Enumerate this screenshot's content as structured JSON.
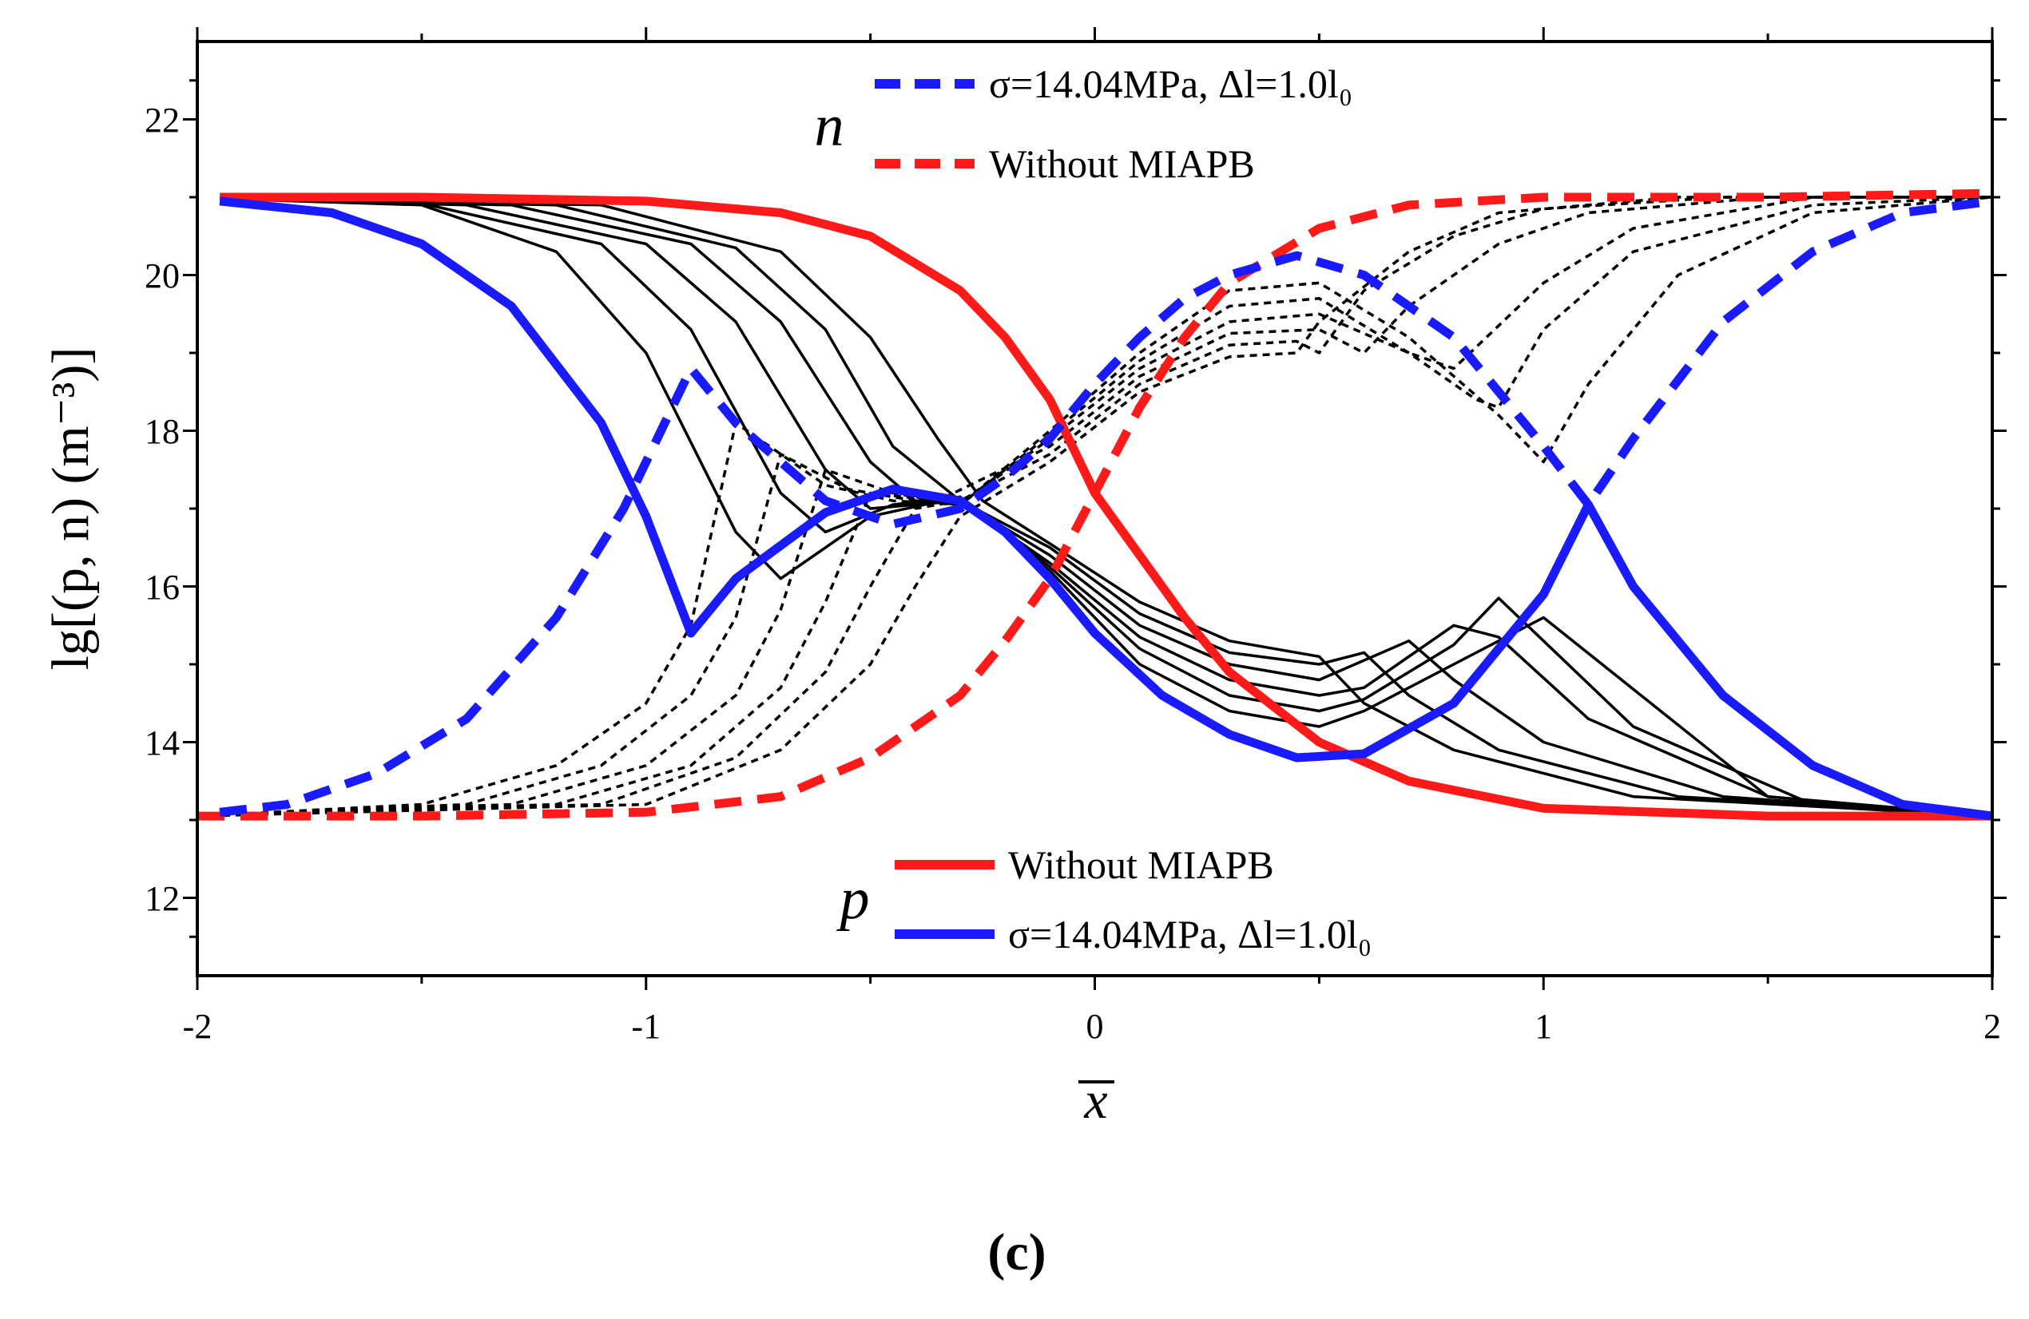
{
  "chart_data": {
    "type": "line",
    "panel_label": "(c)",
    "xlabel": "x",
    "ylabel": "lg[(p, n) (m⁻³)]",
    "xlim": [
      -2,
      2
    ],
    "ylim": [
      11,
      23
    ],
    "x_ticks": [
      -2,
      -1,
      0,
      1,
      2
    ],
    "x_tick_labels": [
      "-2",
      "-1",
      "0",
      "1",
      "2"
    ],
    "y_ticks": [
      12,
      14,
      16,
      18,
      20,
      22
    ],
    "y_tick_labels": [
      "12",
      "14",
      "16",
      "18",
      "20",
      "22"
    ],
    "grid": false,
    "legend_n": {
      "symbol": "n",
      "entries": [
        {
          "label": "σ=14.04MPa, Δl=1.0l₀",
          "color": "#1a1aff",
          "style": "dashed"
        },
        {
          "label": "Without MIAPB",
          "color": "#ff1a1a",
          "style": "dashed"
        }
      ]
    },
    "legend_p": {
      "symbol": "p",
      "entries": [
        {
          "label": "Without MIAPB",
          "color": "#ff1a1a",
          "style": "solid"
        },
        {
          "label": "σ=14.04MPa, Δl=1.0l₀",
          "color": "#1a1aff",
          "style": "solid"
        }
      ]
    },
    "series": [
      {
        "name": "p without MIAPB",
        "carrier": "p",
        "color": "#ff1a1a",
        "style": "solid",
        "x": [
          -1.95,
          -1.5,
          -1.0,
          -0.7,
          -0.5,
          -0.3,
          -0.2,
          -0.1,
          0.0,
          0.1,
          0.2,
          0.3,
          0.5,
          0.7,
          1.0,
          1.5,
          2.0
        ],
        "y": [
          21.0,
          21.0,
          20.95,
          20.8,
          20.5,
          19.8,
          19.2,
          18.4,
          17.2,
          16.4,
          15.6,
          14.9,
          14.0,
          13.5,
          13.15,
          13.05,
          13.05
        ]
      },
      {
        "name": "n without MIAPB",
        "carrier": "n",
        "color": "#ff1a1a",
        "style": "dashed",
        "x": [
          -2.0,
          -1.5,
          -1.0,
          -0.7,
          -0.5,
          -0.3,
          -0.2,
          -0.1,
          0.0,
          0.1,
          0.2,
          0.3,
          0.5,
          0.7,
          1.0,
          1.5,
          2.0
        ],
        "y": [
          13.05,
          13.05,
          13.1,
          13.3,
          13.8,
          14.6,
          15.3,
          16.1,
          17.2,
          18.3,
          19.2,
          19.9,
          20.6,
          20.9,
          21.0,
          21.0,
          21.05
        ]
      },
      {
        "name": "p with MIAPB (σ=14.04MPa, Δl=1.0l₀)",
        "carrier": "p",
        "color": "#1a1aff",
        "style": "solid",
        "x": [
          -1.95,
          -1.7,
          -1.5,
          -1.3,
          -1.1,
          -1.0,
          -0.9,
          -0.8,
          -0.6,
          -0.45,
          -0.3,
          -0.2,
          -0.1,
          0.0,
          0.15,
          0.3,
          0.45,
          0.6,
          0.8,
          1.0,
          1.1,
          1.2,
          1.4,
          1.6,
          1.8,
          2.0
        ],
        "y": [
          20.95,
          20.8,
          20.4,
          19.6,
          18.1,
          16.9,
          15.4,
          16.1,
          16.95,
          17.25,
          17.1,
          16.7,
          16.1,
          15.4,
          14.6,
          14.1,
          13.8,
          13.85,
          14.5,
          15.9,
          17.05,
          16.0,
          14.6,
          13.7,
          13.2,
          13.05
        ]
      },
      {
        "name": "n with MIAPB (σ=14.04MPa, Δl=1.0l₀)",
        "carrier": "n",
        "color": "#1a1aff",
        "style": "dashed",
        "x": [
          -1.95,
          -1.8,
          -1.6,
          -1.4,
          -1.2,
          -1.05,
          -0.9,
          -0.8,
          -0.6,
          -0.45,
          -0.3,
          -0.2,
          -0.1,
          0.0,
          0.1,
          0.2,
          0.3,
          0.45,
          0.6,
          0.8,
          1.0,
          1.1,
          1.2,
          1.4,
          1.6,
          1.8,
          2.0
        ],
        "y": [
          13.1,
          13.2,
          13.6,
          14.3,
          15.6,
          17.0,
          18.8,
          18.1,
          17.1,
          16.8,
          17.0,
          17.4,
          17.9,
          18.6,
          19.2,
          19.7,
          20.0,
          20.25,
          20.0,
          19.2,
          17.8,
          17.05,
          17.9,
          19.4,
          20.3,
          20.8,
          20.95
        ]
      },
      {
        "name": "p intermediate 1",
        "carrier": "p",
        "color": "#000000",
        "style": "solid",
        "x": [
          -1.95,
          -1.5,
          -1.2,
          -1.0,
          -0.8,
          -0.7,
          -0.5,
          -0.3,
          -0.1,
          0.1,
          0.3,
          0.5,
          0.6,
          0.8,
          1.0,
          1.5,
          2.0
        ],
        "y": [
          20.98,
          20.9,
          20.3,
          19.0,
          16.7,
          16.1,
          16.9,
          17.15,
          16.2,
          15.0,
          14.4,
          14.2,
          14.4,
          15.0,
          15.6,
          13.3,
          13.05
        ]
      },
      {
        "name": "p intermediate 2",
        "carrier": "p",
        "color": "#000000",
        "style": "solid",
        "x": [
          -1.95,
          -1.5,
          -1.1,
          -0.9,
          -0.7,
          -0.6,
          -0.45,
          -0.3,
          -0.1,
          0.1,
          0.3,
          0.5,
          0.6,
          0.8,
          0.9,
          1.2,
          1.6,
          2.0
        ],
        "y": [
          20.98,
          20.92,
          20.4,
          19.3,
          17.2,
          16.7,
          17.05,
          17.15,
          16.25,
          15.2,
          14.6,
          14.4,
          14.55,
          15.25,
          15.85,
          14.2,
          13.2,
          13.05
        ]
      },
      {
        "name": "p intermediate 3",
        "carrier": "p",
        "color": "#000000",
        "style": "solid",
        "x": [
          -1.95,
          -1.4,
          -1.0,
          -0.8,
          -0.6,
          -0.5,
          -0.4,
          -0.3,
          -0.1,
          0.1,
          0.3,
          0.5,
          0.6,
          0.8,
          0.9,
          1.1,
          1.5,
          2.0
        ],
        "y": [
          20.98,
          20.9,
          20.4,
          19.4,
          17.5,
          17.0,
          17.05,
          17.1,
          16.3,
          15.35,
          14.8,
          14.6,
          14.7,
          15.5,
          15.35,
          14.3,
          13.3,
          13.05
        ]
      },
      {
        "name": "p intermediate 4",
        "carrier": "p",
        "color": "#000000",
        "style": "solid",
        "x": [
          -1.95,
          -1.3,
          -0.9,
          -0.7,
          -0.5,
          -0.4,
          -0.3,
          -0.1,
          0.1,
          0.3,
          0.5,
          0.7,
          0.8,
          1.0,
          1.4,
          2.0
        ],
        "y": [
          20.98,
          20.9,
          20.4,
          19.4,
          17.6,
          17.1,
          17.1,
          16.4,
          15.5,
          15.0,
          14.8,
          15.3,
          14.8,
          14.0,
          13.3,
          13.05
        ]
      },
      {
        "name": "p intermediate 5",
        "carrier": "p",
        "color": "#000000",
        "style": "solid",
        "x": [
          -1.95,
          -1.2,
          -0.8,
          -0.6,
          -0.45,
          -0.3,
          -0.1,
          0.1,
          0.3,
          0.5,
          0.6,
          0.7,
          0.9,
          1.3,
          2.0
        ],
        "y": [
          20.98,
          20.9,
          20.35,
          19.3,
          17.8,
          17.1,
          16.5,
          15.65,
          15.15,
          15.0,
          15.15,
          14.6,
          13.9,
          13.3,
          13.05
        ]
      },
      {
        "name": "p intermediate 6",
        "carrier": "p",
        "color": "#000000",
        "style": "solid",
        "x": [
          -1.95,
          -1.1,
          -0.7,
          -0.5,
          -0.35,
          -0.25,
          -0.1,
          0.1,
          0.3,
          0.5,
          0.6,
          0.8,
          1.2,
          2.0
        ],
        "y": [
          20.98,
          20.9,
          20.3,
          19.2,
          17.9,
          17.1,
          16.55,
          15.8,
          15.3,
          15.1,
          14.5,
          13.9,
          13.3,
          13.05
        ]
      },
      {
        "name": "n intermediate 1",
        "carrier": "n",
        "color": "#000000",
        "style": "dotted",
        "x": [
          -2.0,
          -1.5,
          -1.2,
          -1.0,
          -0.9,
          -0.8,
          -0.6,
          -0.45,
          -0.3,
          -0.1,
          0.1,
          0.3,
          0.5,
          0.7,
          0.9,
          1.0,
          1.1,
          1.3,
          1.6,
          2.0
        ],
        "y": [
          13.05,
          13.2,
          13.7,
          14.5,
          15.5,
          18.1,
          17.3,
          17.1,
          17.05,
          18.0,
          19.0,
          19.8,
          19.9,
          19.2,
          18.2,
          17.6,
          18.6,
          20.0,
          20.8,
          21.0
        ]
      },
      {
        "name": "n intermediate 2",
        "carrier": "n",
        "color": "#000000",
        "style": "dotted",
        "x": [
          -2.0,
          -1.4,
          -1.1,
          -0.9,
          -0.8,
          -0.7,
          -0.55,
          -0.4,
          -0.3,
          -0.1,
          0.1,
          0.3,
          0.5,
          0.7,
          0.85,
          0.9,
          1.0,
          1.2,
          1.6,
          2.0
        ],
        "y": [
          13.05,
          13.2,
          13.7,
          14.6,
          15.6,
          17.7,
          17.25,
          17.1,
          17.05,
          17.95,
          18.9,
          19.6,
          19.7,
          19.0,
          18.4,
          18.3,
          19.3,
          20.3,
          20.9,
          21.0
        ]
      },
      {
        "name": "n intermediate 3",
        "carrier": "n",
        "color": "#000000",
        "style": "dotted",
        "x": [
          -2.0,
          -1.3,
          -1.0,
          -0.8,
          -0.7,
          -0.6,
          -0.45,
          -0.3,
          -0.1,
          0.1,
          0.3,
          0.5,
          0.7,
          0.8,
          1.0,
          1.2,
          1.6,
          2.0
        ],
        "y": [
          13.05,
          13.2,
          13.7,
          14.6,
          15.7,
          17.5,
          17.2,
          17.05,
          17.9,
          18.8,
          19.4,
          19.5,
          19.0,
          18.8,
          19.9,
          20.6,
          21.0,
          21.0
        ]
      },
      {
        "name": "n intermediate 4",
        "carrier": "n",
        "color": "#000000",
        "style": "dotted",
        "x": [
          -2.0,
          -1.2,
          -0.9,
          -0.7,
          -0.6,
          -0.5,
          -0.35,
          -0.1,
          0.1,
          0.3,
          0.5,
          0.6,
          0.7,
          0.9,
          1.1,
          1.5,
          2.0
        ],
        "y": [
          13.05,
          13.2,
          13.7,
          14.7,
          15.8,
          17.2,
          17.1,
          17.8,
          18.7,
          19.25,
          19.3,
          19.0,
          19.6,
          20.4,
          20.8,
          21.0,
          21.0
        ]
      },
      {
        "name": "n intermediate 5",
        "carrier": "n",
        "color": "#000000",
        "style": "dotted",
        "x": [
          -2.0,
          -1.1,
          -0.8,
          -0.6,
          -0.5,
          -0.4,
          -0.3,
          -0.1,
          0.1,
          0.3,
          0.45,
          0.5,
          0.6,
          0.8,
          1.0,
          1.4,
          2.0
        ],
        "y": [
          13.05,
          13.2,
          13.8,
          14.9,
          16.0,
          17.0,
          17.1,
          17.7,
          18.6,
          19.1,
          19.15,
          19.0,
          19.8,
          20.5,
          20.85,
          21.0,
          21.0
        ]
      },
      {
        "name": "n intermediate 6",
        "carrier": "n",
        "color": "#000000",
        "style": "dotted",
        "x": [
          -2.0,
          -1.0,
          -0.7,
          -0.5,
          -0.4,
          -0.3,
          -0.1,
          0.1,
          0.3,
          0.45,
          0.5,
          0.7,
          0.9,
          1.3,
          2.0
        ],
        "y": [
          13.05,
          13.2,
          13.9,
          15.0,
          16.0,
          16.9,
          17.6,
          18.5,
          18.95,
          19.0,
          19.4,
          20.3,
          20.8,
          21.0,
          21.0
        ]
      }
    ]
  }
}
